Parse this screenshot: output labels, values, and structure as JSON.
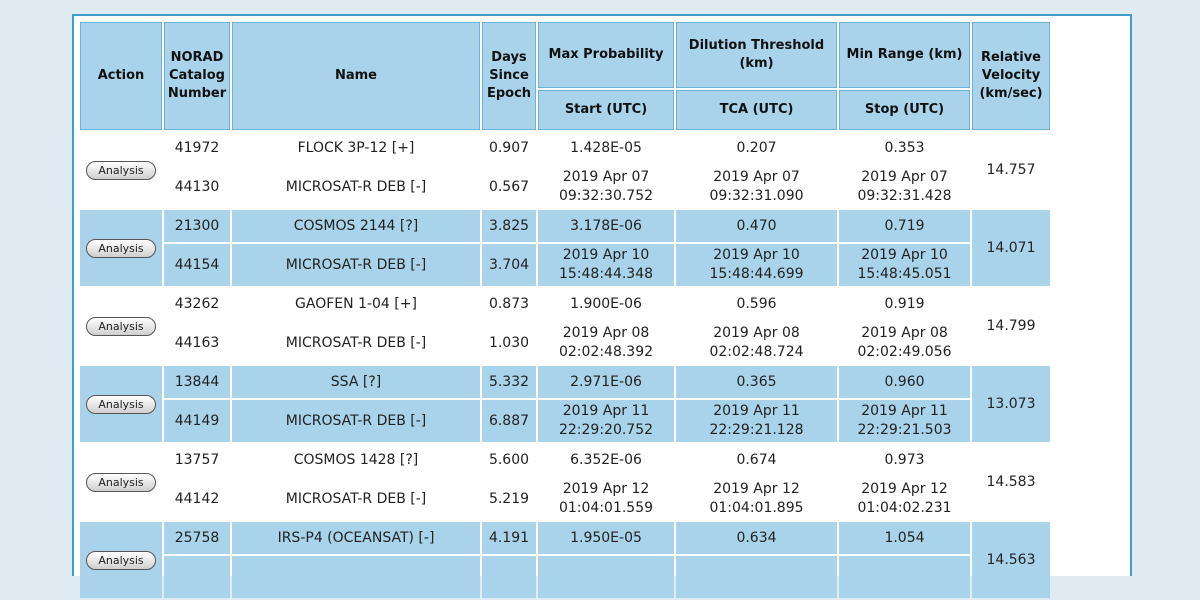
{
  "headers": {
    "action": "Action",
    "norad": "NORAD Catalog Number",
    "name": "Name",
    "days": "Days Since Epoch",
    "max_prob": "Max Probability",
    "dilution": "Dilution Threshold (km)",
    "min_range": "Min Range (km)",
    "rel_vel": "Relative Velocity (km/sec)",
    "start": "Start (UTC)",
    "tca": "TCA (UTC)",
    "stop": "Stop (UTC)"
  },
  "button_label": "Analysis",
  "rows": [
    {
      "a": {
        "norad": "41972",
        "name": "FLOCK 3P-12 [+]",
        "days": "0.907",
        "maxprob": "1.428E-05",
        "dilution": "0.207",
        "minrange": "0.353"
      },
      "b": {
        "norad": "44130",
        "name": "MICROSAT-R DEB [-]",
        "days": "0.567",
        "start": [
          "2019 Apr 07",
          "09:32:30.752"
        ],
        "tca": [
          "2019 Apr 07",
          "09:32:31.090"
        ],
        "stop": [
          "2019 Apr 07",
          "09:32:31.428"
        ]
      },
      "velocity": "14.757"
    },
    {
      "a": {
        "norad": "21300",
        "name": "COSMOS 2144 [?]",
        "days": "3.825",
        "maxprob": "3.178E-06",
        "dilution": "0.470",
        "minrange": "0.719"
      },
      "b": {
        "norad": "44154",
        "name": "MICROSAT-R DEB [-]",
        "days": "3.704",
        "start": [
          "2019 Apr 10",
          "15:48:44.348"
        ],
        "tca": [
          "2019 Apr 10",
          "15:48:44.699"
        ],
        "stop": [
          "2019 Apr 10",
          "15:48:45.051"
        ]
      },
      "velocity": "14.071"
    },
    {
      "a": {
        "norad": "43262",
        "name": "GAOFEN 1-04 [+]",
        "days": "0.873",
        "maxprob": "1.900E-06",
        "dilution": "0.596",
        "minrange": "0.919"
      },
      "b": {
        "norad": "44163",
        "name": "MICROSAT-R DEB [-]",
        "days": "1.030",
        "start": [
          "2019 Apr 08",
          "02:02:48.392"
        ],
        "tca": [
          "2019 Apr 08",
          "02:02:48.724"
        ],
        "stop": [
          "2019 Apr 08",
          "02:02:49.056"
        ]
      },
      "velocity": "14.799"
    },
    {
      "a": {
        "norad": "13844",
        "name": "SSA [?]",
        "days": "5.332",
        "maxprob": "2.971E-06",
        "dilution": "0.365",
        "minrange": "0.960"
      },
      "b": {
        "norad": "44149",
        "name": "MICROSAT-R DEB [-]",
        "days": "6.887",
        "start": [
          "2019 Apr 11",
          "22:29:20.752"
        ],
        "tca": [
          "2019 Apr 11",
          "22:29:21.128"
        ],
        "stop": [
          "2019 Apr 11",
          "22:29:21.503"
        ]
      },
      "velocity": "13.073"
    },
    {
      "a": {
        "norad": "13757",
        "name": "COSMOS 1428 [?]",
        "days": "5.600",
        "maxprob": "6.352E-06",
        "dilution": "0.674",
        "minrange": "0.973"
      },
      "b": {
        "norad": "44142",
        "name": "MICROSAT-R DEB [-]",
        "days": "5.219",
        "start": [
          "2019 Apr 12",
          "01:04:01.559"
        ],
        "tca": [
          "2019 Apr 12",
          "01:04:01.895"
        ],
        "stop": [
          "2019 Apr 12",
          "01:04:02.231"
        ]
      },
      "velocity": "14.583"
    },
    {
      "a": {
        "norad": "25758",
        "name": "IRS-P4 (OCEANSAT) [-]",
        "days": "4.191",
        "maxprob": "1.950E-05",
        "dilution": "0.634",
        "minrange": "1.054"
      },
      "b": {
        "norad": "",
        "name": "",
        "days": "",
        "start": [
          "",
          ""
        ],
        "tca": [
          "",
          ""
        ],
        "stop": [
          "",
          ""
        ]
      },
      "velocity": "14.563"
    }
  ]
}
